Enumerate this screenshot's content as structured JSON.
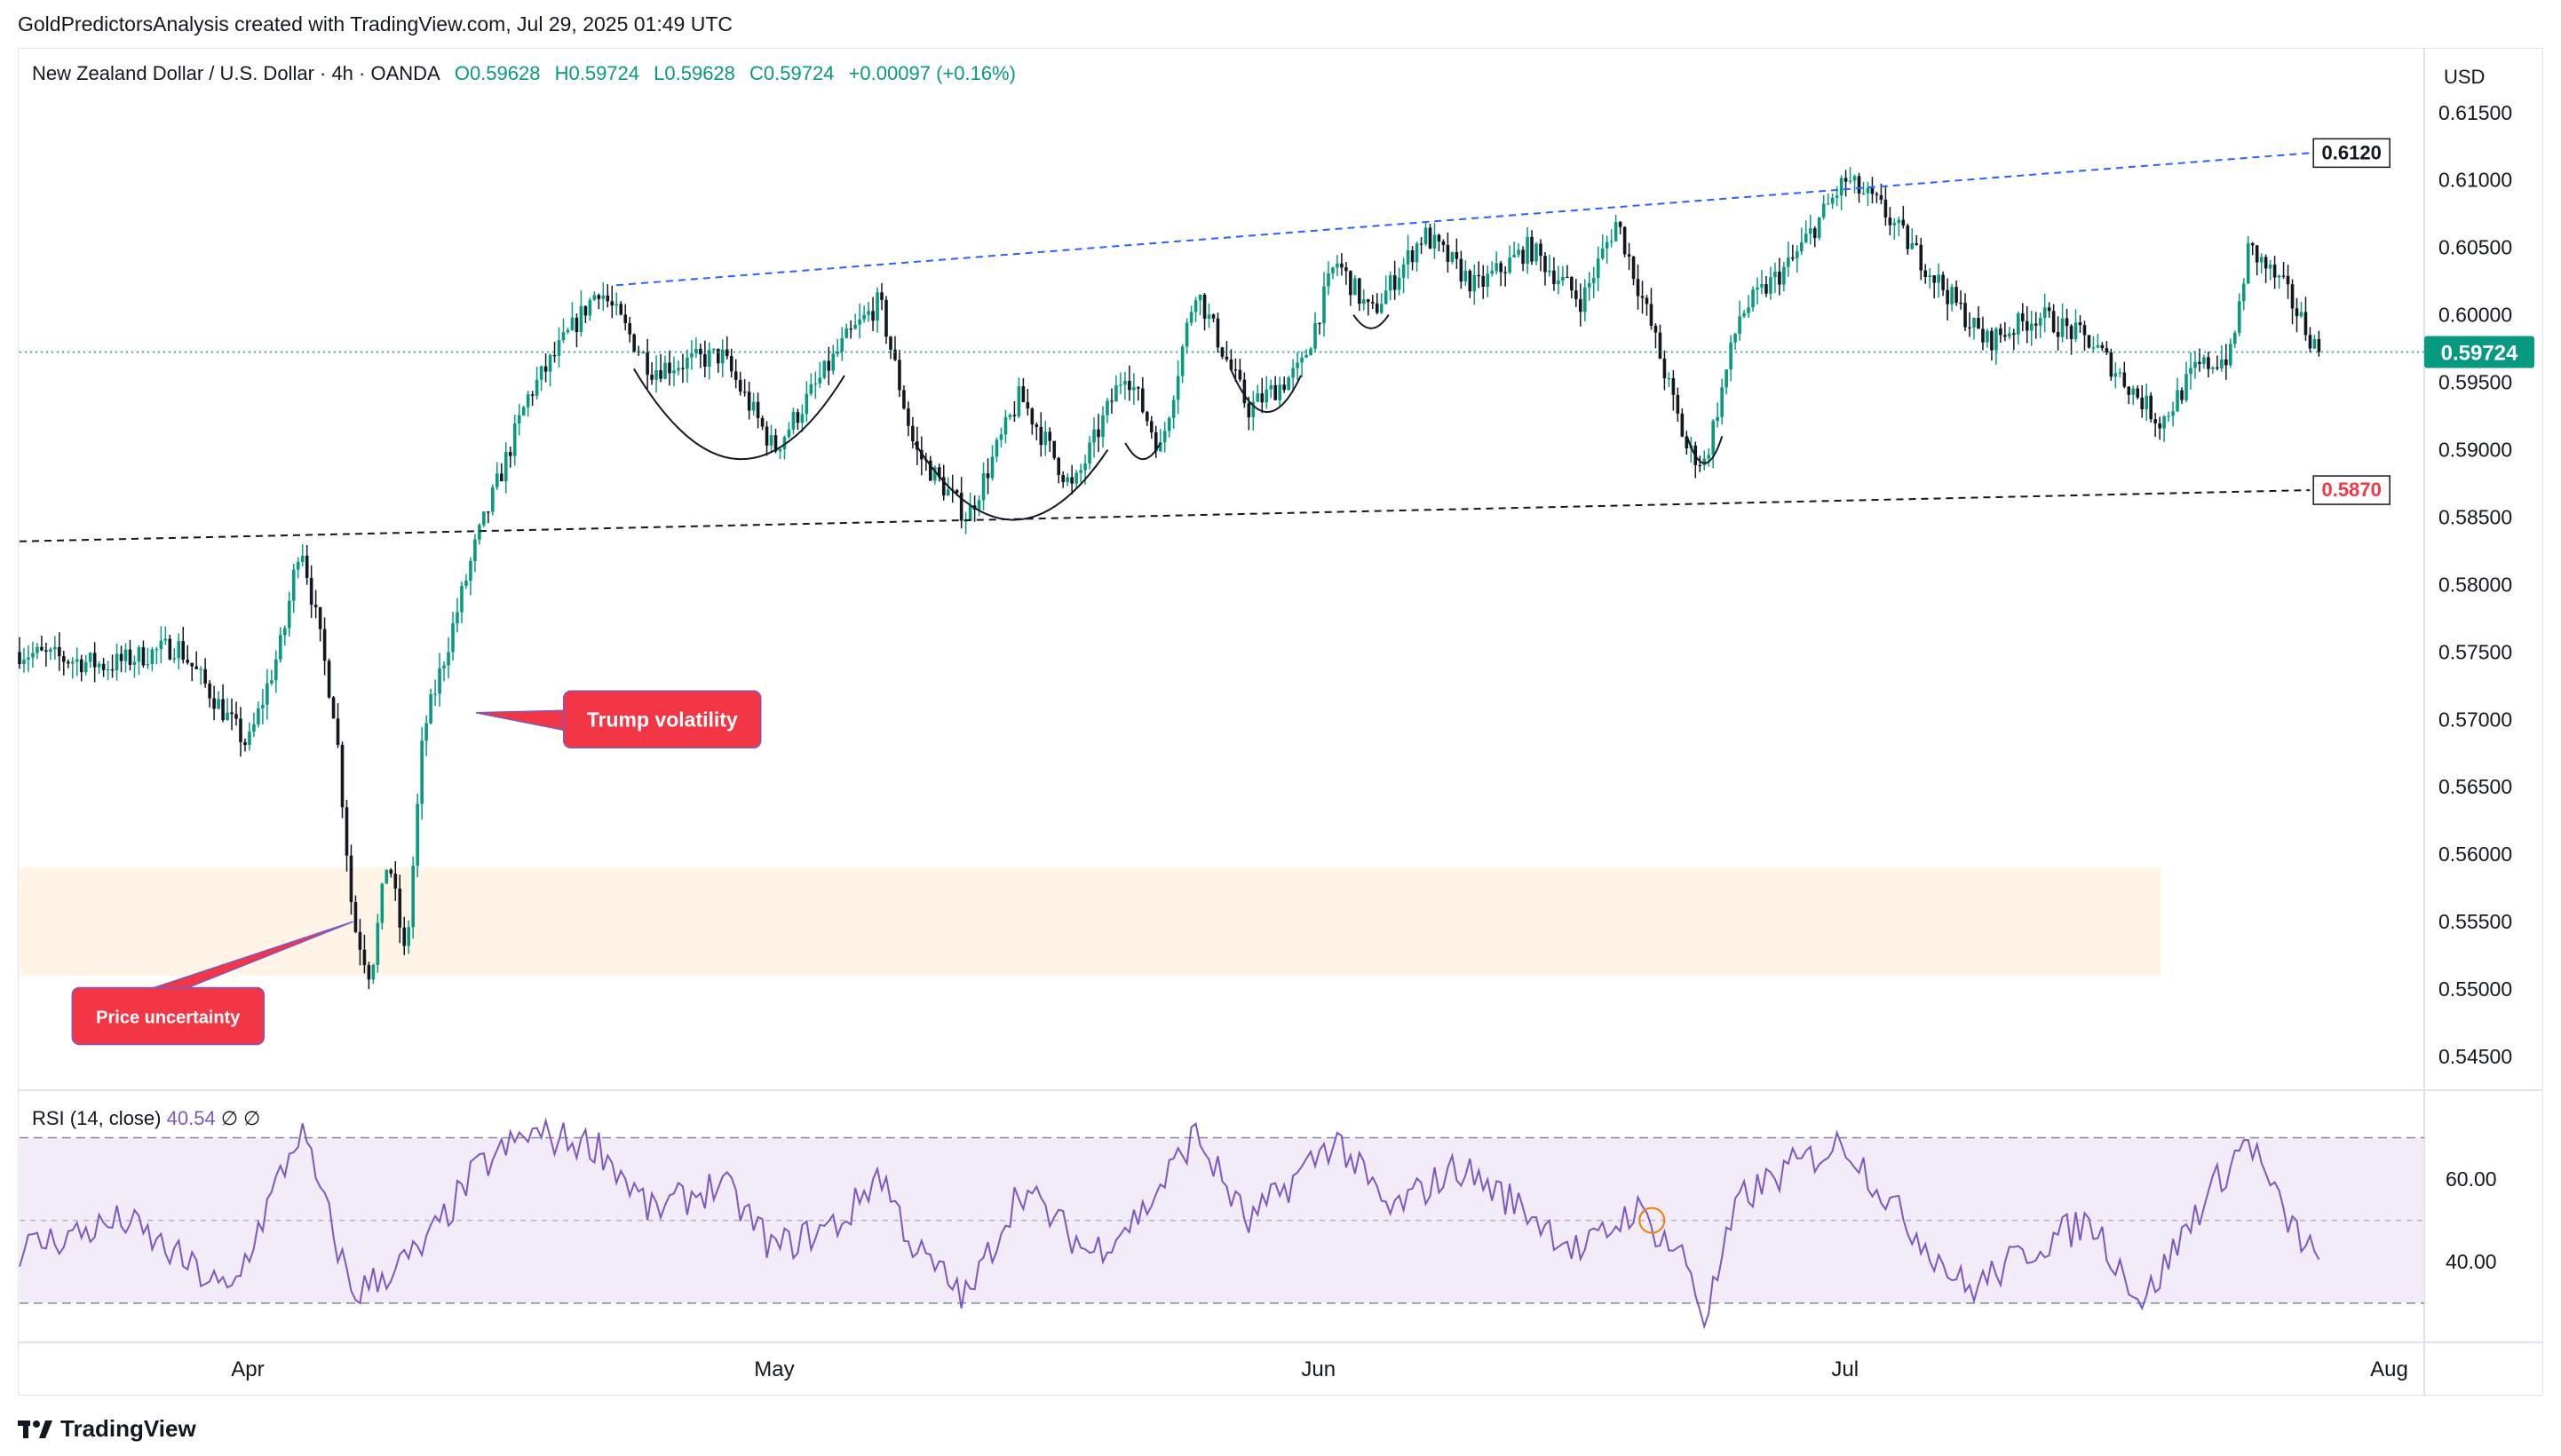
{
  "attribution": "GoldPredictorsAnalysis created with TradingView.com, Jul 29, 2025 01:49 UTC",
  "legend": {
    "symbol": "New Zealand Dollar / U.S. Dollar · 4h · OANDA",
    "open": "O0.59628",
    "high": "H0.59724",
    "low": "L0.59628",
    "close": "C0.59724",
    "change": "+0.00097 (+0.16%)"
  },
  "currency": "USD",
  "rsi_legend": {
    "label": "RSI (14, close)",
    "value": "40.54",
    "extra1": "∅",
    "extra2": "∅"
  },
  "footer": {
    "brand": "TradingView"
  },
  "colors": {
    "up": "#089981",
    "down": "#131722",
    "rsi": "#7e57c2",
    "accent_red": "#f23645",
    "accent_green": "#089981",
    "blue_dash": "#2962ff"
  },
  "chart_data": [
    {
      "type": "candlestick",
      "title": "New Zealand Dollar / U.S. Dollar · 4h · OANDA",
      "yaxis_ticks": [
        "0.61500",
        "0.61000",
        "0.60500",
        "0.60000",
        "0.59500",
        "0.59000",
        "0.58500",
        "0.58000",
        "0.57500",
        "0.57000",
        "0.56500",
        "0.56000",
        "0.55500",
        "0.55000",
        "0.54500"
      ],
      "ylim": [
        0.5425,
        0.6165
      ],
      "xaxis_ticks": [
        "Apr",
        "May",
        "Jun",
        "Jul",
        "Aug"
      ],
      "current_price": {
        "value": 0.59724,
        "label": "0.59724"
      },
      "price_path": [
        {
          "date": "2025-03-19",
          "price": 0.575
        },
        {
          "date": "2025-03-24",
          "price": 0.574
        },
        {
          "date": "2025-03-28",
          "price": 0.5755
        },
        {
          "date": "2025-04-01",
          "price": 0.568
        },
        {
          "date": "2025-04-03",
          "price": 0.576
        },
        {
          "date": "2025-04-04",
          "price": 0.5835
        },
        {
          "date": "2025-04-06",
          "price": 0.57
        },
        {
          "date": "2025-04-07",
          "price": 0.555
        },
        {
          "date": "2025-04-08",
          "price": 0.551
        },
        {
          "date": "2025-04-09",
          "price": 0.56
        },
        {
          "date": "2025-04-10",
          "price": 0.552
        },
        {
          "date": "2025-04-11",
          "price": 0.569
        },
        {
          "date": "2025-04-14",
          "price": 0.583
        },
        {
          "date": "2025-04-17",
          "price": 0.594
        },
        {
          "date": "2025-04-21",
          "price": 0.602
        },
        {
          "date": "2025-04-24",
          "price": 0.596
        },
        {
          "date": "2025-04-28",
          "price": 0.597
        },
        {
          "date": "2025-05-01",
          "price": 0.59
        },
        {
          "date": "2025-05-05",
          "price": 0.598
        },
        {
          "date": "2025-05-07",
          "price": 0.601
        },
        {
          "date": "2025-05-09",
          "price": 0.59
        },
        {
          "date": "2025-05-12",
          "price": 0.585
        },
        {
          "date": "2025-05-15",
          "price": 0.594
        },
        {
          "date": "2025-05-18",
          "price": 0.587
        },
        {
          "date": "2025-05-21",
          "price": 0.596
        },
        {
          "date": "2025-05-23",
          "price": 0.59
        },
        {
          "date": "2025-05-25",
          "price": 0.602
        },
        {
          "date": "2025-05-28",
          "price": 0.593
        },
        {
          "date": "2025-05-31",
          "price": 0.596
        },
        {
          "date": "2025-06-02",
          "price": 0.604
        },
        {
          "date": "2025-06-04",
          "price": 0.6
        },
        {
          "date": "2025-06-07",
          "price": 0.606
        },
        {
          "date": "2025-06-10",
          "price": 0.602
        },
        {
          "date": "2025-06-13",
          "price": 0.605
        },
        {
          "date": "2025-06-16",
          "price": 0.601
        },
        {
          "date": "2025-06-18",
          "price": 0.607
        },
        {
          "date": "2025-06-20",
          "price": 0.599
        },
        {
          "date": "2025-06-22",
          "price": 0.59
        },
        {
          "date": "2025-06-23",
          "price": 0.589
        },
        {
          "date": "2025-06-25",
          "price": 0.6
        },
        {
          "date": "2025-06-28",
          "price": 0.604
        },
        {
          "date": "2025-07-01",
          "price": 0.61
        },
        {
          "date": "2025-07-03",
          "price": 0.608
        },
        {
          "date": "2025-07-06",
          "price": 0.603
        },
        {
          "date": "2025-07-09",
          "price": 0.598
        },
        {
          "date": "2025-07-12",
          "price": 0.6
        },
        {
          "date": "2025-07-15",
          "price": 0.598
        },
        {
          "date": "2025-07-17",
          "price": 0.595
        },
        {
          "date": "2025-07-19",
          "price": 0.592
        },
        {
          "date": "2025-07-21",
          "price": 0.596
        },
        {
          "date": "2025-07-23",
          "price": 0.597
        },
        {
          "date": "2025-07-24",
          "price": 0.605
        },
        {
          "date": "2025-07-26",
          "price": 0.602
        },
        {
          "date": "2025-07-28",
          "price": 0.5972
        }
      ],
      "trendlines": [
        {
          "style": "dashed",
          "color": "#2962ff",
          "from": {
            "date": "2025-04-22",
            "price": 0.6022
          },
          "to": {
            "date": "2025-07-29",
            "price": 0.612
          },
          "label": "0.6120"
        },
        {
          "style": "dashed",
          "color": "#131722",
          "from": {
            "date": "2025-03-19",
            "price": 0.5832
          },
          "to": {
            "date": "2025-07-29",
            "price": 0.587
          },
          "label": "0.5870"
        }
      ],
      "support_zone": {
        "from": "2025-03-19",
        "to": "2025-07-19",
        "top": 0.559,
        "bottom": 0.551,
        "color": "#fff4e5"
      },
      "annotations": [
        {
          "text": "Trump volatility",
          "date": "2025-04-19",
          "price": 0.57,
          "pointer": {
            "date": "2025-04-14",
            "price": 0.5705
          }
        },
        {
          "text": "Price uncertainty",
          "date": "2025-03-22",
          "price": 0.548,
          "pointer": {
            "date": "2025-04-07",
            "price": 0.555
          }
        }
      ],
      "pattern_arcs": [
        {
          "from": {
            "date": "2025-04-23",
            "price": 0.596
          },
          "to": {
            "date": "2025-05-05",
            "price": 0.5955
          },
          "bottom": 0.5893
        },
        {
          "from": {
            "date": "2025-05-09",
            "price": 0.5905
          },
          "to": {
            "date": "2025-05-20",
            "price": 0.59
          },
          "bottom": 0.5848
        },
        {
          "from": {
            "date": "2025-05-21",
            "price": 0.5905
          },
          "to": {
            "date": "2025-05-23",
            "price": 0.5905
          },
          "bottom": 0.5893
        },
        {
          "from": {
            "date": "2025-05-27",
            "price": 0.596
          },
          "to": {
            "date": "2025-05-31",
            "price": 0.5955
          },
          "bottom": 0.5928
        },
        {
          "from": {
            "date": "2025-06-03",
            "price": 0.6
          },
          "to": {
            "date": "2025-06-05",
            "price": 0.6
          },
          "bottom": 0.599
        },
        {
          "from": {
            "date": "2025-06-22",
            "price": 0.591
          },
          "to": {
            "date": "2025-06-24",
            "price": 0.591
          },
          "bottom": 0.589
        }
      ]
    },
    {
      "type": "line",
      "title": "RSI (14, close)",
      "value_label": "40.54",
      "yaxis_ticks": [
        "60.00",
        "40.00"
      ],
      "ylim": [
        22,
        80
      ],
      "bands": {
        "upper": 70,
        "middle": 50,
        "lower": 30
      },
      "xaxis_ticks": [
        "Apr",
        "May",
        "Jun",
        "Jul",
        "Aug"
      ],
      "series": [
        {
          "values": [
            {
              "date": "2025-03-19",
              "rsi": 43
            },
            {
              "date": "2025-03-25",
              "rsi": 50
            },
            {
              "date": "2025-03-31",
              "rsi": 32
            },
            {
              "date": "2025-04-04",
              "rsi": 72
            },
            {
              "date": "2025-04-07",
              "rsi": 32
            },
            {
              "date": "2025-04-11",
              "rsi": 43
            },
            {
              "date": "2025-04-14",
              "rsi": 62
            },
            {
              "date": "2025-04-17",
              "rsi": 71
            },
            {
              "date": "2025-04-21",
              "rsi": 68
            },
            {
              "date": "2025-04-24",
              "rsi": 52
            },
            {
              "date": "2025-04-28",
              "rsi": 59
            },
            {
              "date": "2025-05-01",
              "rsi": 43
            },
            {
              "date": "2025-05-05",
              "rsi": 50
            },
            {
              "date": "2025-05-07",
              "rsi": 62
            },
            {
              "date": "2025-05-09",
              "rsi": 43
            },
            {
              "date": "2025-05-12",
              "rsi": 31
            },
            {
              "date": "2025-05-15",
              "rsi": 58
            },
            {
              "date": "2025-05-19",
              "rsi": 42
            },
            {
              "date": "2025-05-22",
              "rsi": 52
            },
            {
              "date": "2025-05-25",
              "rsi": 71
            },
            {
              "date": "2025-05-28",
              "rsi": 49
            },
            {
              "date": "2025-06-02",
              "rsi": 70
            },
            {
              "date": "2025-06-05",
              "rsi": 52
            },
            {
              "date": "2025-06-09",
              "rsi": 63
            },
            {
              "date": "2025-06-13",
              "rsi": 52
            },
            {
              "date": "2025-06-16",
              "rsi": 42
            },
            {
              "date": "2025-06-19",
              "rsi": 53
            },
            {
              "date": "2025-06-22",
              "rsi": 40
            },
            {
              "date": "2025-06-23",
              "rsi": 26
            },
            {
              "date": "2025-06-25",
              "rsi": 55
            },
            {
              "date": "2025-06-28",
              "rsi": 63
            },
            {
              "date": "2025-07-01",
              "rsi": 69
            },
            {
              "date": "2025-07-04",
              "rsi": 52
            },
            {
              "date": "2025-07-08",
              "rsi": 33
            },
            {
              "date": "2025-07-12",
              "rsi": 44
            },
            {
              "date": "2025-07-15",
              "rsi": 50
            },
            {
              "date": "2025-07-18",
              "rsi": 30
            },
            {
              "date": "2025-07-21",
              "rsi": 52
            },
            {
              "date": "2025-07-24",
              "rsi": 70
            },
            {
              "date": "2025-07-26",
              "rsi": 51
            },
            {
              "date": "2025-07-28",
              "rsi": 40.54
            }
          ]
        }
      ],
      "marker": {
        "date": "2025-06-20",
        "rsi": 50,
        "color": "#f57c00"
      }
    }
  ]
}
